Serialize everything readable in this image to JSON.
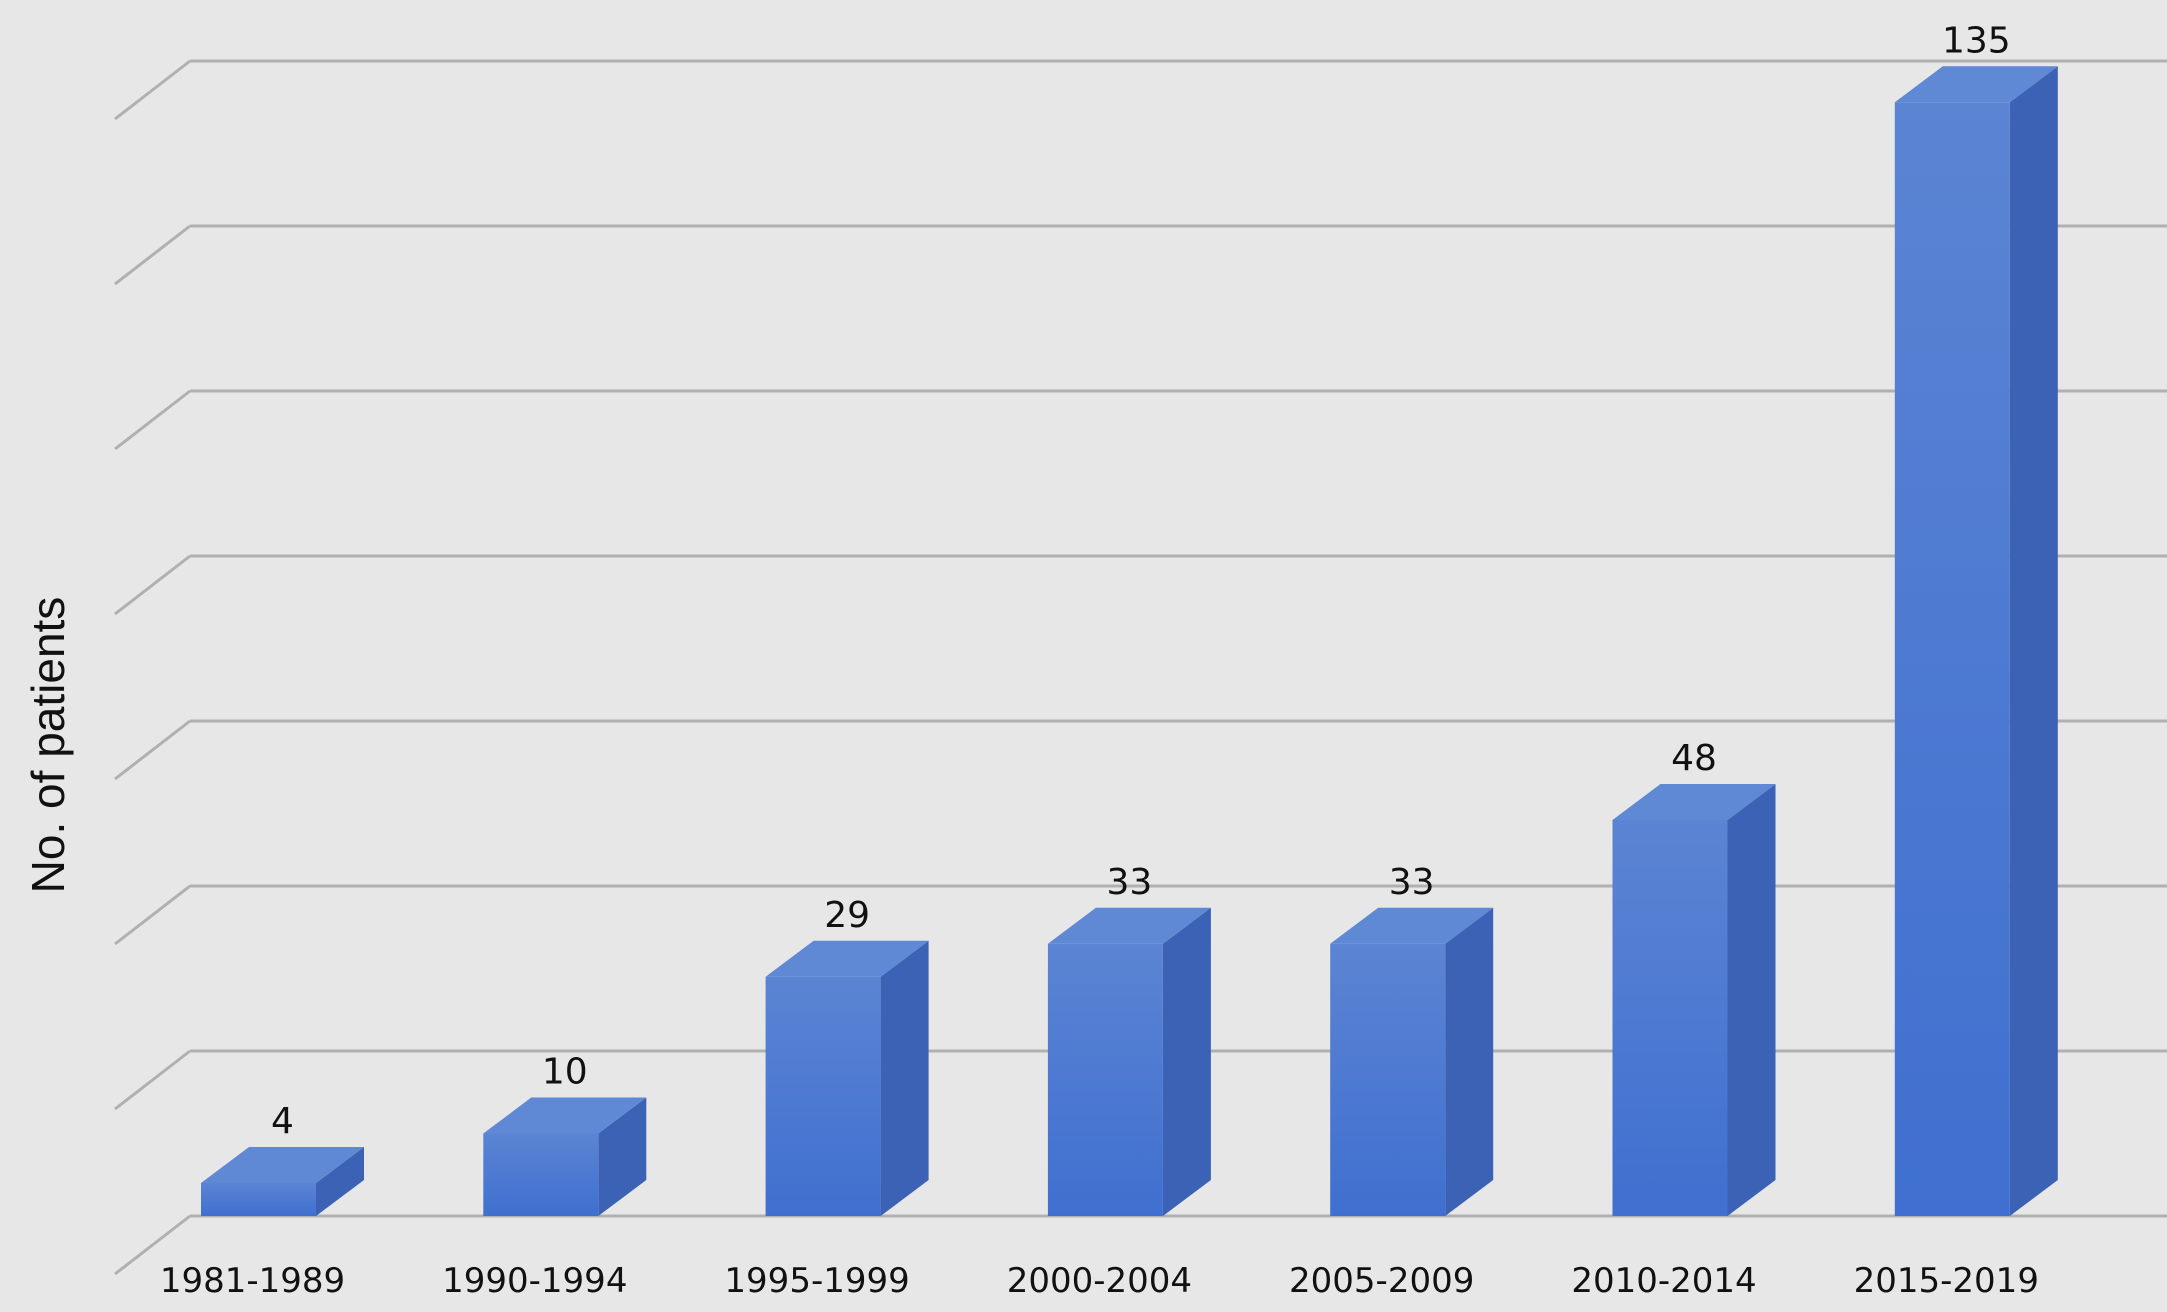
{
  "chart_data": {
    "type": "bar",
    "title": "",
    "xlabel": "",
    "ylabel": "No. of patients",
    "categories": [
      "1981-1989",
      "1990-1994",
      "1995-1999",
      "2000-2004",
      "2005-2009",
      "2010-2014",
      "2015-2019"
    ],
    "values": [
      4,
      10,
      29,
      33,
      33,
      48,
      135
    ],
    "ylim": [
      0,
      140
    ],
    "gridlines": true,
    "legend": "none",
    "style": "3d-column",
    "colors": {
      "background": "#e7e7e7",
      "bar_front": "#4a78cf",
      "bar_side": "#3b62b4",
      "bar_top": "#5f88d5",
      "grid": "#b0b0b0"
    }
  }
}
